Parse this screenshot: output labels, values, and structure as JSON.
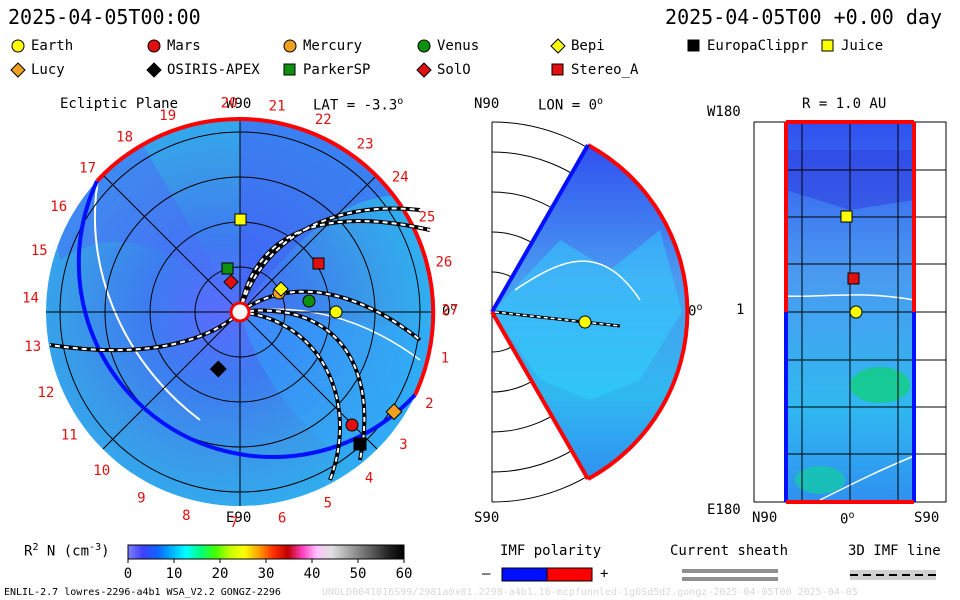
{
  "header": {
    "left_time": "2025-04-05T00:00",
    "right_time": "2025-04-05T00 +0.00 day"
  },
  "legend": [
    {
      "name": "Earth",
      "shape": "circle",
      "color": "#ffff00"
    },
    {
      "name": "Mars",
      "shape": "circle",
      "color": "#e01010"
    },
    {
      "name": "Mercury",
      "shape": "circle",
      "color": "#f0a020"
    },
    {
      "name": "Venus",
      "shape": "circle",
      "color": "#109010"
    },
    {
      "name": "Bepi",
      "shape": "diamond",
      "color": "#ffff00"
    },
    {
      "name": "EuropaClippr",
      "shape": "square",
      "color": "#000000"
    },
    {
      "name": "Juice",
      "shape": "square",
      "color": "#ffff00"
    },
    {
      "name": "Lucy",
      "shape": "diamond",
      "color": "#f0a020"
    },
    {
      "name": "OSIRIS-APEX",
      "shape": "diamond",
      "color": "#000000"
    },
    {
      "name": "ParkerSP",
      "shape": "square",
      "color": "#109010"
    },
    {
      "name": "SolO",
      "shape": "diamond",
      "color": "#e01010"
    },
    {
      "name": "Stereo_A",
      "shape": "square",
      "color": "#e01010"
    }
  ],
  "panels": {
    "ecliptic": {
      "title": "Ecliptic Plane",
      "lat_label": "LAT = -3.3",
      "lat_sup": "o",
      "top_label": "W90",
      "bottom_label": "E90",
      "right_label": "0",
      "right_sup": "o",
      "carrington_labels": [
        "20",
        "21",
        "22",
        "23",
        "24",
        "25",
        "26",
        "27",
        "1",
        "2",
        "3",
        "4",
        "5",
        "6",
        "7",
        "8",
        "9",
        "10",
        "11",
        "12",
        "13",
        "14",
        "15",
        "16",
        "17",
        "18",
        "19"
      ]
    },
    "meridional": {
      "lon_label": "LON = 0",
      "lon_sup": "o",
      "top_label": "N90",
      "bottom_label": "S90",
      "right_label": "0",
      "right_sup": "o"
    },
    "radial": {
      "title": "R = 1.0 AU",
      "top_left": "W180",
      "mid_left": "1",
      "bottom_left": "E180",
      "x_left": "N90",
      "x_mid": "0",
      "x_mid_sup": "o",
      "x_right": "S90"
    }
  },
  "colorbar": {
    "label": "R",
    "label_sup": "2",
    "label_rest": " N (cm",
    "label_exp": "-3",
    "label_close": ")",
    "ticks": [
      "0",
      "10",
      "20",
      "30",
      "40",
      "50",
      "60"
    ],
    "stops": [
      "#7f7fff",
      "#4040ff",
      "#1060ff",
      "#00b0ff",
      "#00ffff",
      "#00ff80",
      "#40ff00",
      "#c0ff00",
      "#ffff00",
      "#ffa000",
      "#ff3000",
      "#c00000",
      "#ff40c0",
      "#ffc0ff",
      "#e0e0e0",
      "#b0b0b0",
      "#808080",
      "#505050",
      "#202020",
      "#000000"
    ]
  },
  "imf": {
    "title": "IMF polarity",
    "minus": "–",
    "plus": "+",
    "neg_color": "#0010ff",
    "pos_color": "#ff0000"
  },
  "current_sheath": {
    "title": "Current sheath"
  },
  "imf_line": {
    "title": "3D IMF line"
  },
  "footer": {
    "left": "ENLIL-2.7 lowres-2296-a4b1 WSA_V2.2 GONGZ-2296",
    "right": "UNOLD0041016S99/2981a0x01.2298-a4b1.16-mcpfunnled-1g6Sd5d2.gongz-2025-04-05T00   2025-04-05"
  },
  "chart_data": [
    {
      "type": "heatmap",
      "view": "ecliptic polar plot (scaled density R^2 N)",
      "bodies": [
        "Earth",
        "Mars",
        "Mercury",
        "Venus",
        "Bepi",
        "EuropaClippr",
        "Juice",
        "Lucy",
        "OSIRIS-APEX",
        "ParkerSP",
        "SolO",
        "Stereo_A"
      ],
      "latitude": -3.3
    },
    {
      "type": "heatmap",
      "view": "meridional plane",
      "longitude": 0
    },
    {
      "type": "heatmap",
      "view": "R = 1.0 AU sphere",
      "x_ticks": [
        "N90",
        "0",
        "S90"
      ],
      "y_ticks": [
        "W180",
        "1",
        "E180"
      ]
    }
  ]
}
